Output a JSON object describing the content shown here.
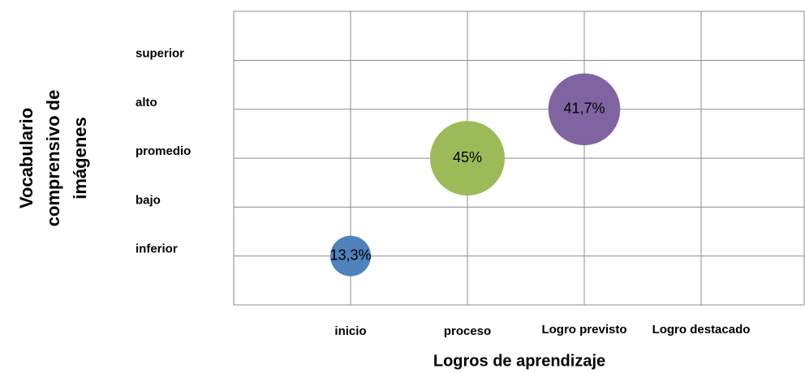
{
  "chart_data": {
    "type": "bubble",
    "xlabel": "Logros de aprendizaje",
    "ylabel": [
      "Vocabulario",
      "comprensivo de",
      "imágenes"
    ],
    "x_categories": [
      "inicio",
      "proceso",
      "Logro  previsto",
      "Logro destacado"
    ],
    "y_categories": [
      "inferior",
      "bajo",
      "promedio",
      "alto",
      "superior"
    ],
    "x": [
      "inicio",
      "proceso",
      "Logro  previsto"
    ],
    "y": [
      "inferior",
      "promedio",
      "alto"
    ],
    "values": [
      13.3,
      45,
      41.7
    ],
    "value_labels": [
      "13,3%",
      "45%",
      "41,7%"
    ],
    "colors": [
      "#4f81bd",
      "#9bbb59",
      "#8064a2"
    ],
    "grid": true
  }
}
